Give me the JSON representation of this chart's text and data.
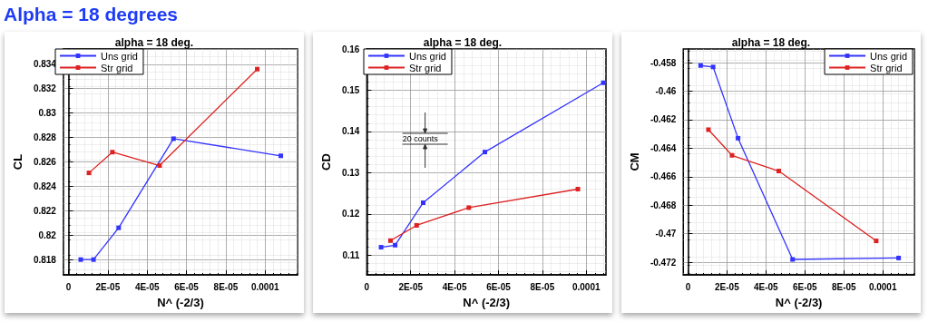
{
  "chart_data": [
    {
      "type": "line",
      "title": "alpha = 18 deg.",
      "xlabel": "N^ (-2/3)",
      "ylabel": "CL",
      "annotations": [
        "Alpha = 18 degrees"
      ],
      "marker": "square",
      "grid": true,
      "legend": "top left",
      "xlim": [
        -2.6e-06,
        0.0001165
      ],
      "xticks": [
        {
          "value": 0,
          "label": "0"
        },
        {
          "value": 2e-05,
          "label": "2E-05"
        },
        {
          "value": 4e-05,
          "label": "4E-05"
        },
        {
          "value": 6e-05,
          "label": "6E-05"
        },
        {
          "value": 8e-05,
          "label": "8E-05"
        },
        {
          "value": 0.0001,
          "label": "0.0001"
        }
      ],
      "ylim": [
        0.81675,
        0.83525
      ],
      "yticks": [
        0.818,
        0.82,
        0.822,
        0.824,
        0.826,
        0.828,
        0.83,
        0.832,
        0.834
      ],
      "series": [
        {
          "name": "Uns grid",
          "color": "#3333ff",
          "x": [
            6.2e-06,
            1.27e-05,
            2.55e-05,
            5.34e-05,
            0.000108
          ],
          "values": [
            0.818,
            0.818,
            0.8206,
            0.8279,
            0.8265
          ]
        },
        {
          "name": "Str grid",
          "color": "#dd2222",
          "x": [
            1.04e-05,
            2.23e-05,
            4.63e-05,
            9.6e-05
          ],
          "values": [
            0.8251,
            0.8268,
            0.8257,
            0.8336
          ]
        }
      ]
    },
    {
      "type": "line",
      "title": "alpha = 18 deg.",
      "xlabel": "N^ (-2/3)",
      "ylabel": "CD",
      "annotations": [
        "20 counts"
      ],
      "marker": "square",
      "grid": true,
      "legend": "top left",
      "xlim": [
        0,
        0.000109
      ],
      "xticks": [
        {
          "value": 0,
          "label": "0"
        },
        {
          "value": 2e-05,
          "label": "2E-05"
        },
        {
          "value": 4e-05,
          "label": "4E-05"
        },
        {
          "value": 6e-05,
          "label": "6E-05"
        },
        {
          "value": 8e-05,
          "label": "8E-05"
        },
        {
          "value": 0.0001,
          "label": "0.0001"
        }
      ],
      "ylim": [
        0.1052,
        0.16
      ],
      "yticks": [
        0.11,
        0.12,
        0.13,
        0.14,
        0.15,
        0.16
      ],
      "series": [
        {
          "name": "Uns grid",
          "color": "#3333ff",
          "x": [
            6.5e-06,
            1.29e-05,
            2.57e-05,
            5.38e-05,
            0.0001078
          ],
          "values": [
            0.1119,
            0.1124,
            0.1227,
            0.135,
            0.1518
          ]
        },
        {
          "name": "Str grid",
          "color": "#dd2222",
          "x": [
            1.08e-05,
            2.27e-05,
            4.65e-05,
            9.62e-05
          ],
          "values": [
            0.1135,
            0.1172,
            0.1215,
            0.126
          ]
        }
      ]
    },
    {
      "type": "line",
      "title": "alpha = 18 deg.",
      "xlabel": "N^ (-2/3)",
      "ylabel": "CM",
      "marker": "square",
      "grid": true,
      "legend": "top right",
      "xlim": [
        -2.4e-06,
        0.0001162
      ],
      "xticks": [
        {
          "value": 0,
          "label": "0"
        },
        {
          "value": 2e-05,
          "label": "2E-05"
        },
        {
          "value": 4e-05,
          "label": "4E-05"
        },
        {
          "value": 6e-05,
          "label": "6E-05"
        },
        {
          "value": 8e-05,
          "label": "8E-05"
        },
        {
          "value": 0.0001,
          "label": "0.0001"
        }
      ],
      "ylim": [
        -0.47288,
        -0.45704
      ],
      "yticks": [
        -0.472,
        -0.47,
        -0.468,
        -0.466,
        -0.464,
        -0.462,
        -0.46,
        -0.458
      ],
      "series": [
        {
          "name": "Uns grid",
          "color": "#3333ff",
          "x": [
            6.5e-06,
            1.29e-05,
            2.57e-05,
            5.37e-05,
            0.0001081
          ],
          "values": [
            -0.4582,
            -0.4583,
            -0.4633,
            -0.4718,
            -0.4717
          ]
        },
        {
          "name": "Str grid",
          "color": "#dd2222",
          "x": [
            1.05e-05,
            2.26e-05,
            4.66e-05,
            9.66e-05
          ],
          "values": [
            -0.4627,
            -0.4645,
            -0.4656,
            -0.4705
          ]
        }
      ]
    }
  ]
}
